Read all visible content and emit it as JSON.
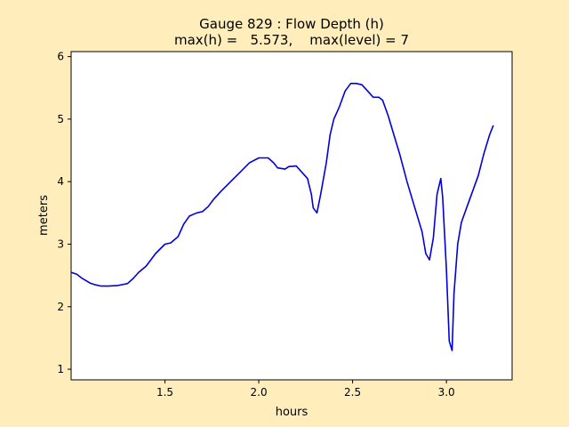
{
  "chart_data": {
    "type": "line",
    "title_line1": "Gauge 829 : Flow Depth (h)",
    "title_line2": "max(h) =   5.573,    max(level) = 7",
    "xlabel": "hours",
    "ylabel": "meters",
    "xlim": [
      1.0,
      3.35
    ],
    "ylim": [
      0.83,
      6.08
    ],
    "xticks": [
      1.5,
      2.0,
      2.5,
      3.0
    ],
    "xtick_labels": [
      "1.5",
      "2.0",
      "2.5",
      "3.0"
    ],
    "yticks": [
      1,
      2,
      3,
      4,
      5,
      6
    ],
    "ytick_labels": [
      "1",
      "2",
      "3",
      "4",
      "5",
      "6"
    ],
    "grid": false,
    "line_color": "#0000dd",
    "series": [
      {
        "x": [
          1.0,
          1.03,
          1.06,
          1.1,
          1.13,
          1.16,
          1.2,
          1.25,
          1.3,
          1.33,
          1.36,
          1.4,
          1.45,
          1.5,
          1.53,
          1.57,
          1.6,
          1.63,
          1.67,
          1.7,
          1.73,
          1.76,
          1.8,
          1.85,
          1.9,
          1.95,
          2.0,
          2.05,
          2.08,
          2.1,
          2.14,
          2.16,
          2.2,
          2.23,
          2.26,
          2.28,
          2.29,
          2.31,
          2.33,
          2.36,
          2.38,
          2.4,
          2.43,
          2.46,
          2.49,
          2.52,
          2.55,
          2.58,
          2.61,
          2.64,
          2.66,
          2.69,
          2.72,
          2.75,
          2.79,
          2.83,
          2.87,
          2.89,
          2.91,
          2.93,
          2.95,
          2.97,
          2.98,
          3.0,
          3.015,
          3.03,
          3.04,
          3.06,
          3.08,
          3.11,
          3.14,
          3.17,
          3.2,
          3.23,
          3.25
        ],
        "y": [
          2.55,
          2.52,
          2.45,
          2.38,
          2.35,
          2.33,
          2.33,
          2.34,
          2.37,
          2.45,
          2.55,
          2.65,
          2.85,
          3.0,
          3.02,
          3.12,
          3.32,
          3.45,
          3.5,
          3.52,
          3.6,
          3.72,
          3.85,
          4.0,
          4.15,
          4.3,
          4.38,
          4.38,
          4.3,
          4.22,
          4.2,
          4.24,
          4.25,
          4.15,
          4.05,
          3.8,
          3.58,
          3.5,
          3.8,
          4.3,
          4.75,
          5.0,
          5.2,
          5.45,
          5.57,
          5.57,
          5.55,
          5.45,
          5.35,
          5.35,
          5.3,
          5.05,
          4.75,
          4.45,
          4.0,
          3.6,
          3.2,
          2.85,
          2.75,
          3.1,
          3.8,
          4.05,
          3.75,
          2.6,
          1.45,
          1.3,
          2.2,
          3.0,
          3.35,
          3.6,
          3.85,
          4.1,
          4.45,
          4.75,
          4.9
        ]
      }
    ]
  }
}
